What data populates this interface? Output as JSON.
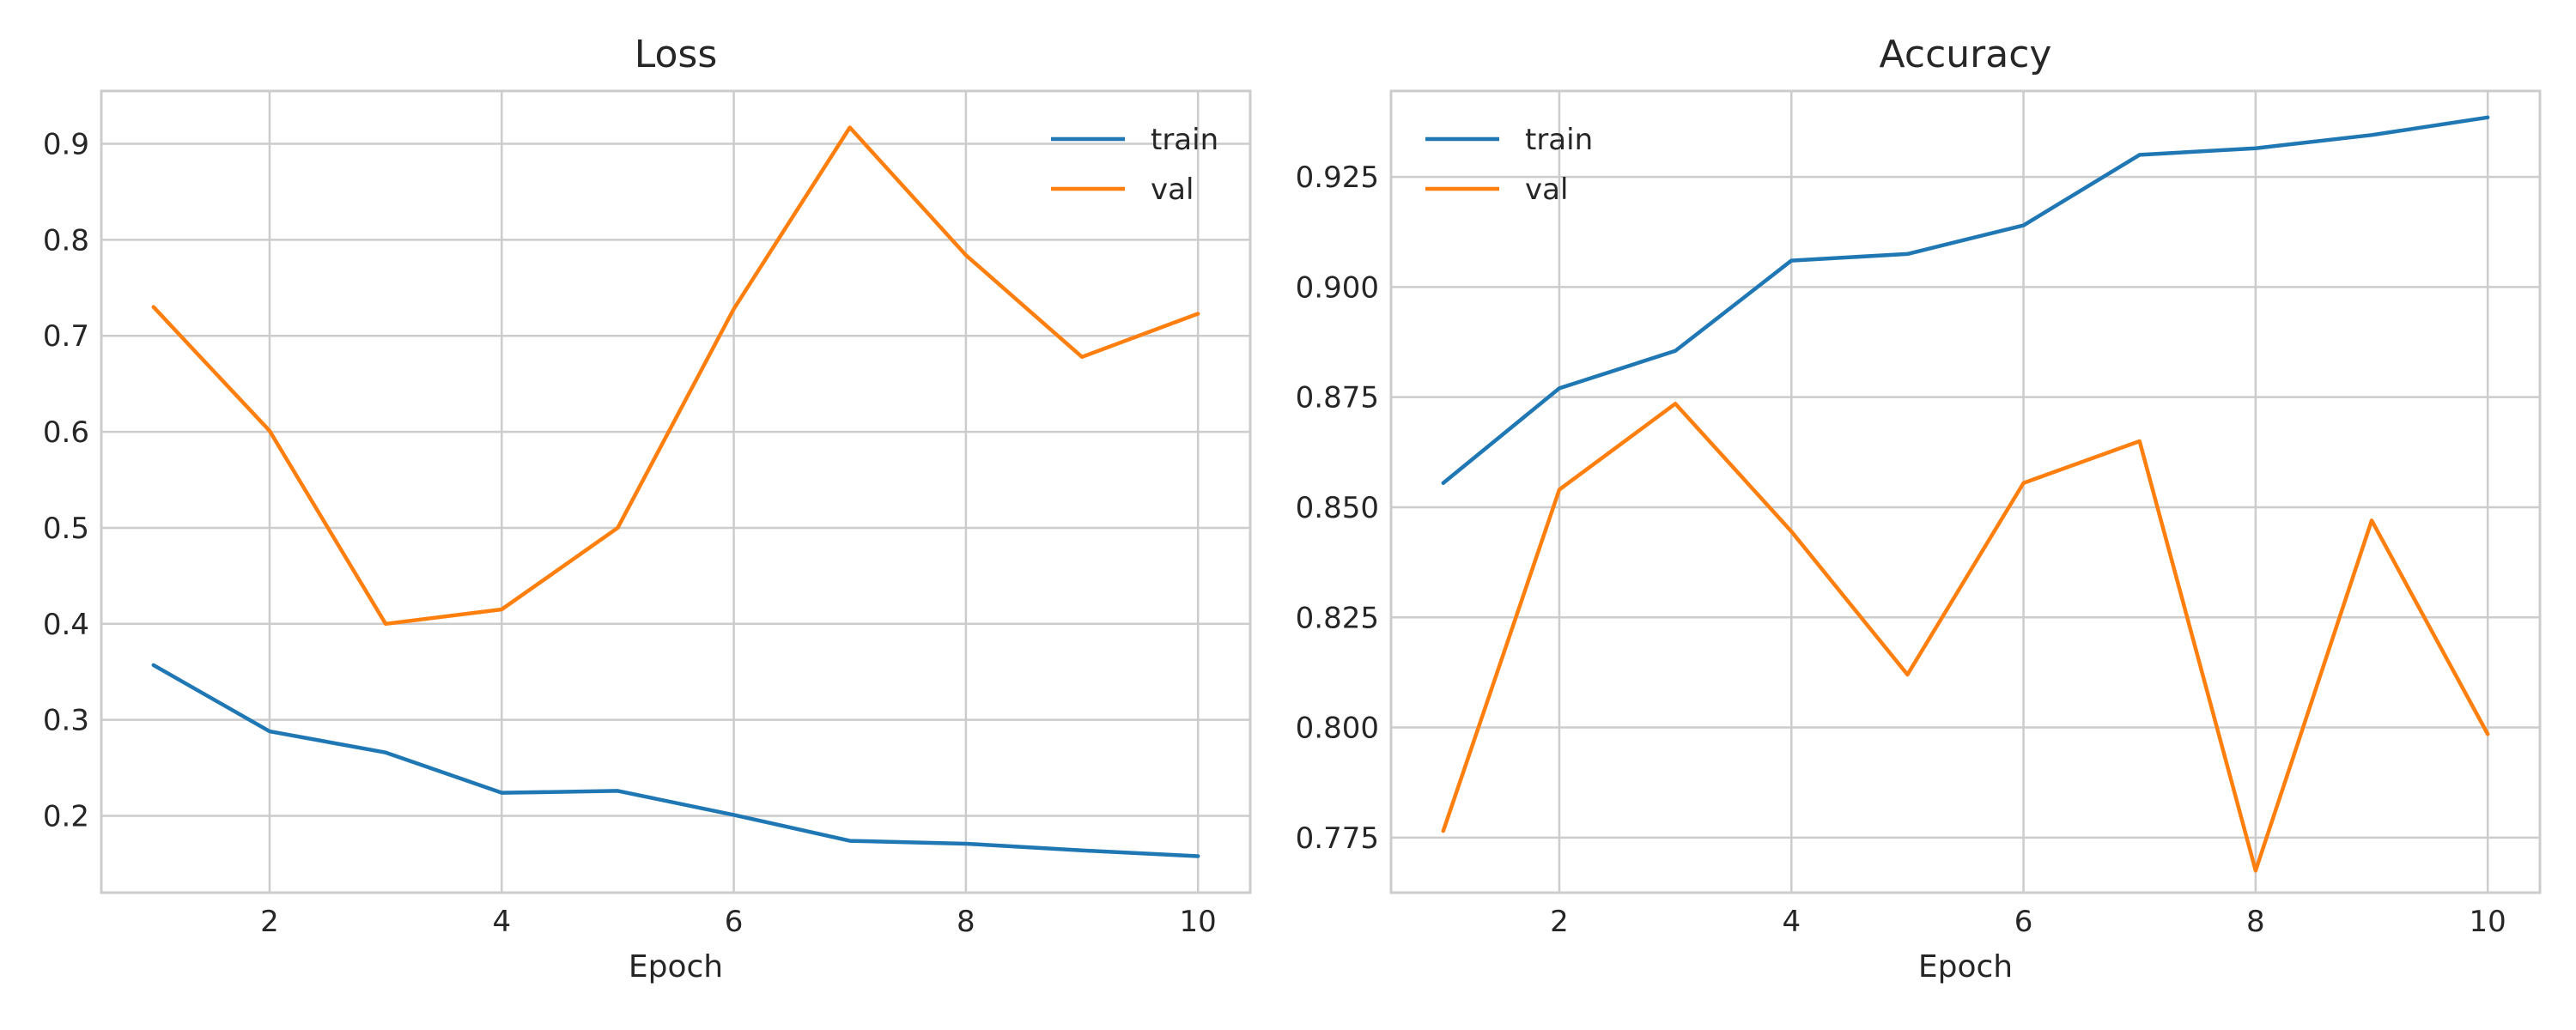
{
  "colors": {
    "train": "#1f77b4",
    "val": "#ff7f0e",
    "grid": "#cccccc",
    "text": "#262626"
  },
  "chart_data": [
    {
      "type": "line",
      "title": "Loss",
      "xlabel": "Epoch",
      "ylabel": "",
      "x": [
        1,
        2,
        3,
        4,
        5,
        6,
        7,
        8,
        9,
        10
      ],
      "xlim": [
        0.55,
        10.45
      ],
      "ylim": [
        0.12,
        0.955
      ],
      "xticks": [
        2,
        4,
        6,
        8,
        10
      ],
      "xtick_labels": [
        "2",
        "4",
        "6",
        "8",
        "10"
      ],
      "yticks": [
        0.2,
        0.3,
        0.4,
        0.5,
        0.6,
        0.7,
        0.8,
        0.9
      ],
      "ytick_labels": [
        "0.2",
        "0.3",
        "0.4",
        "0.5",
        "0.6",
        "0.7",
        "0.8",
        "0.9"
      ],
      "grid": true,
      "legend_position": "top-right",
      "series": [
        {
          "name": "train",
          "color": "#1f77b4",
          "values": [
            0.357,
            0.288,
            0.266,
            0.224,
            0.226,
            0.201,
            0.174,
            0.171,
            0.164,
            0.158
          ]
        },
        {
          "name": "val",
          "color": "#ff7f0e",
          "values": [
            0.73,
            0.601,
            0.4,
            0.415,
            0.5,
            0.728,
            0.917,
            0.784,
            0.678,
            0.723
          ]
        }
      ]
    },
    {
      "type": "line",
      "title": "Accuracy",
      "xlabel": "Epoch",
      "ylabel": "",
      "x": [
        1,
        2,
        3,
        4,
        5,
        6,
        7,
        8,
        9,
        10
      ],
      "xlim": [
        0.55,
        10.45
      ],
      "ylim": [
        0.7625,
        0.9445
      ],
      "xticks": [
        2,
        4,
        6,
        8,
        10
      ],
      "xtick_labels": [
        "2",
        "4",
        "6",
        "8",
        "10"
      ],
      "yticks": [
        0.775,
        0.8,
        0.825,
        0.85,
        0.875,
        0.9,
        0.925
      ],
      "ytick_labels": [
        "0.775",
        "0.800",
        "0.825",
        "0.850",
        "0.875",
        "0.900",
        "0.925"
      ],
      "grid": true,
      "legend_position": "top-left",
      "series": [
        {
          "name": "train",
          "color": "#1f77b4",
          "values": [
            0.8555,
            0.877,
            0.8855,
            0.906,
            0.9075,
            0.914,
            0.93,
            0.9315,
            0.9345,
            0.9385
          ]
        },
        {
          "name": "val",
          "color": "#ff7f0e",
          "values": [
            0.7765,
            0.854,
            0.8735,
            0.8445,
            0.812,
            0.8555,
            0.865,
            0.7675,
            0.847,
            0.7985
          ]
        }
      ]
    }
  ]
}
